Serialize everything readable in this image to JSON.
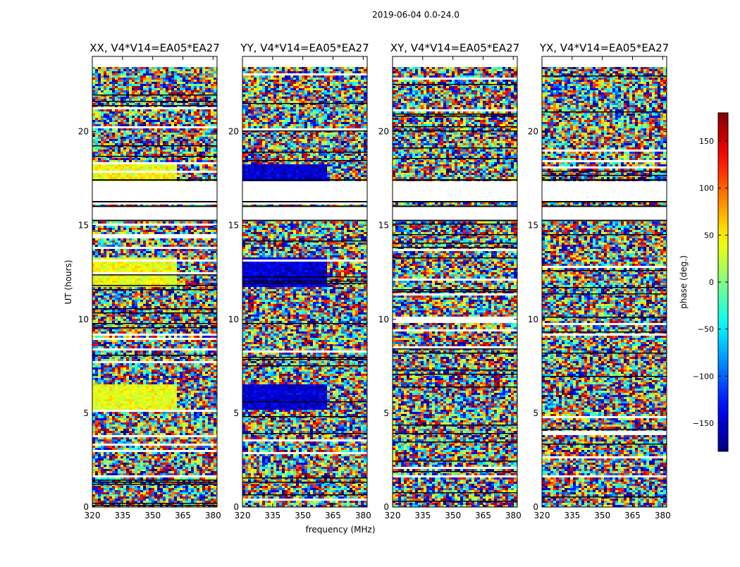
{
  "figure": {
    "suptitle": "2019-06-04 0.0-24.0",
    "xlabel": "frequency (MHz)",
    "ylabel": "UT (hours)",
    "colorbar_label": "phase (deg.)"
  },
  "colorbar": {
    "colormap": "jet",
    "range": [
      -180,
      180
    ],
    "ticks": [
      150,
      100,
      50,
      0,
      -50,
      -100,
      -150
    ],
    "tick_labels": [
      "150",
      "100",
      "50",
      "0",
      "−50",
      "−100",
      "−150"
    ]
  },
  "chart_data": [
    {
      "type": "heatmap",
      "title": "XX, V4*V14=EA05*EA27",
      "xlim": [
        320,
        382
      ],
      "ylim": [
        0,
        24
      ],
      "xticks": [
        320,
        335,
        350,
        365,
        380
      ],
      "yticks": [
        0,
        5,
        10,
        15,
        20
      ],
      "value": "phase (deg.)",
      "data_gaps_ut_hours": [
        [
          16.3,
          17.4
        ],
        [
          15.3,
          16.0
        ]
      ],
      "coherent_region": {
        "ut": [
          11.8,
          13.3
        ],
        "freq_mhz": [
          320,
          362
        ],
        "phase_deg": 40
      },
      "coherent_region_2": {
        "ut": [
          5.2,
          6.6
        ],
        "freq_mhz": [
          320,
          362
        ],
        "phase_deg": 40
      },
      "coherent_region_3": {
        "ut": [
          17.4,
          18.3
        ],
        "freq_mhz": [
          320,
          362
        ],
        "phase_deg": 40
      }
    },
    {
      "type": "heatmap",
      "title": "YY, V4*V14=EA05*EA27",
      "xlim": [
        320,
        382
      ],
      "ylim": [
        0,
        24
      ],
      "xticks": [
        320,
        335,
        350,
        365,
        380
      ],
      "yticks": [
        0,
        5,
        10,
        15,
        20
      ],
      "value": "phase (deg.)",
      "data_gaps_ut_hours": [
        [
          16.3,
          17.4
        ],
        [
          15.3,
          16.0
        ]
      ],
      "coherent_region": {
        "ut": [
          11.8,
          13.3
        ],
        "freq_mhz": [
          320,
          362
        ],
        "phase_deg": -150
      },
      "coherent_region_2": {
        "ut": [
          5.2,
          6.6
        ],
        "freq_mhz": [
          320,
          362
        ],
        "phase_deg": -150
      },
      "coherent_region_3": {
        "ut": [
          17.4,
          18.3
        ],
        "freq_mhz": [
          320,
          362
        ],
        "phase_deg": -150
      }
    },
    {
      "type": "heatmap",
      "title": "XY, V4*V14=EA05*EA27",
      "xlim": [
        320,
        382
      ],
      "ylim": [
        0,
        24
      ],
      "xticks": [
        320,
        335,
        350,
        365,
        380
      ],
      "yticks": [
        0,
        5,
        10,
        15,
        20
      ],
      "value": "phase (deg.)",
      "data_gaps_ut_hours": [
        [
          16.3,
          17.4
        ],
        [
          15.3,
          16.0
        ]
      ]
    },
    {
      "type": "heatmap",
      "title": "YX, V4*V14=EA05*EA27",
      "xlim": [
        320,
        382
      ],
      "ylim": [
        0,
        24
      ],
      "xticks": [
        320,
        335,
        350,
        365,
        380
      ],
      "yticks": [
        0,
        5,
        10,
        15,
        20
      ],
      "value": "phase (deg.)",
      "data_gaps_ut_hours": [
        [
          16.3,
          17.4
        ],
        [
          15.3,
          16.0
        ]
      ]
    }
  ]
}
